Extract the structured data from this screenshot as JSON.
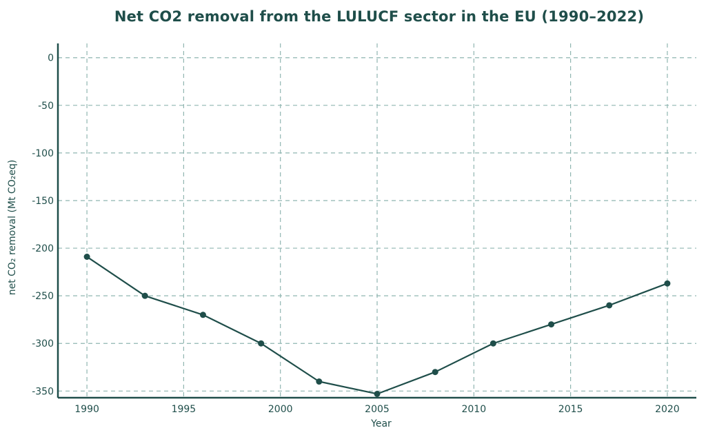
{
  "chart_data": {
    "type": "line",
    "title": "Net CO2 removal from the LULUCF sector in the EU (1990–2022)",
    "xlabel": "Year",
    "ylabel": "net CO₂ removal (Mt CO₂eq)",
    "xlim": [
      1988.5,
      2021.5
    ],
    "ylim": [
      -357,
      15
    ],
    "xticks": [
      1990,
      1995,
      2000,
      2005,
      2010,
      2015,
      2020
    ],
    "yticks": [
      0,
      -50,
      -100,
      -150,
      -200,
      -250,
      -300,
      -350
    ],
    "grid": true,
    "grid_style": "dashed",
    "series": [
      {
        "x": [
          1990,
          1993,
          1996,
          1999,
          2002,
          2005,
          2008,
          2011,
          2014,
          2017,
          2020
        ],
        "y": [
          -209,
          -250,
          -270,
          -300,
          -340,
          -353,
          -330,
          -300,
          -280,
          -260,
          -237
        ]
      }
    ],
    "colors": {
      "line": "#1f4e4a",
      "grid": "#8fb5b0",
      "axis": "#1f4e4a",
      "text": "#1f4e4a"
    }
  }
}
